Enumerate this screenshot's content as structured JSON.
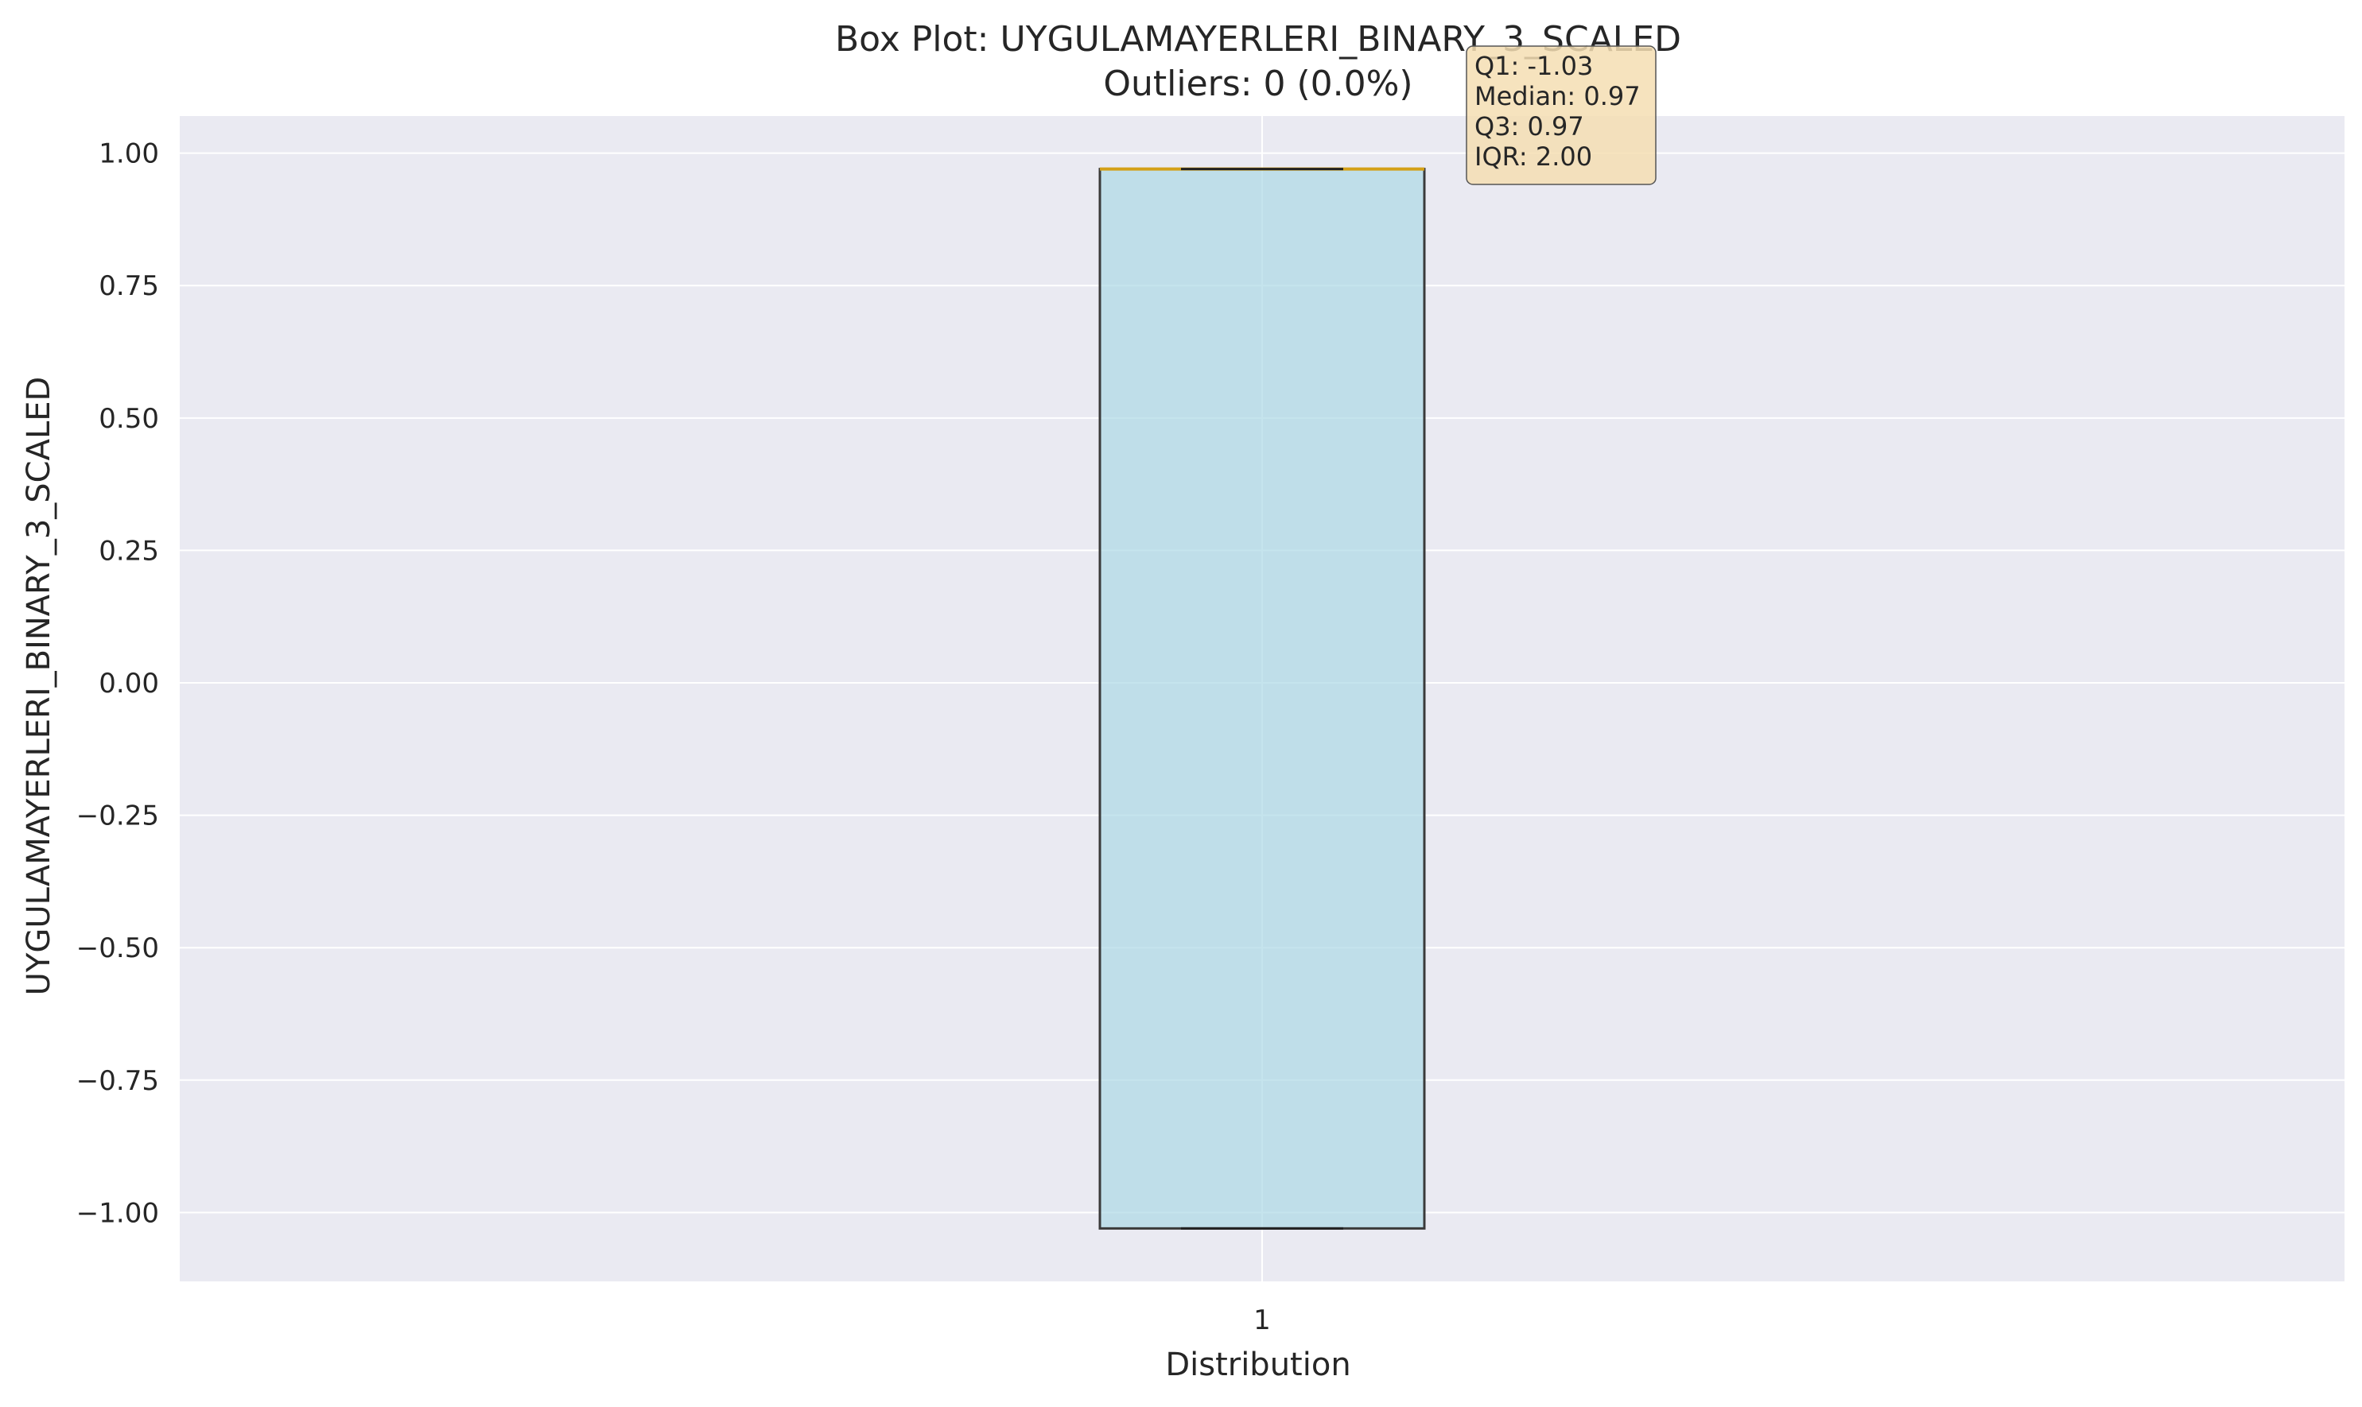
{
  "chart_data": {
    "type": "box",
    "title": "Box Plot: UYGULAMAYERLERI_BINARY_3_SCALED",
    "subtitle": "Outliers: 0 (0.0%)",
    "xlabel": "Distribution",
    "ylabel": "UYGULAMAYERLERI_BINARY_3_SCALED",
    "categories": [
      "1"
    ],
    "ylim": [
      -1.13,
      1.07
    ],
    "yticks": [
      1.0,
      0.75,
      0.5,
      0.25,
      0.0,
      -0.25,
      -0.5,
      -0.75,
      -1.0
    ],
    "ytick_labels": [
      "1.00",
      "0.75",
      "0.50",
      "0.25",
      "0.00",
      "−0.25",
      "−0.50",
      "−0.75",
      "−1.00"
    ],
    "box": {
      "whisker_low": -1.03,
      "q1": -1.03,
      "median": 0.97,
      "q3": 0.97,
      "whisker_high": 0.97
    },
    "stats_box": [
      "Q1: -1.03",
      "Median: 0.97",
      "Q3: 0.97",
      "IQR: 2.00"
    ],
    "grid": true,
    "colors": {
      "plot_background": "#eaeaf2",
      "grid": "#ffffff",
      "box_fill": "#add8e6",
      "box_edge": "#3a3a3a",
      "median_line": "#d4a017",
      "stats_box_fill": "#f5deb3"
    }
  }
}
